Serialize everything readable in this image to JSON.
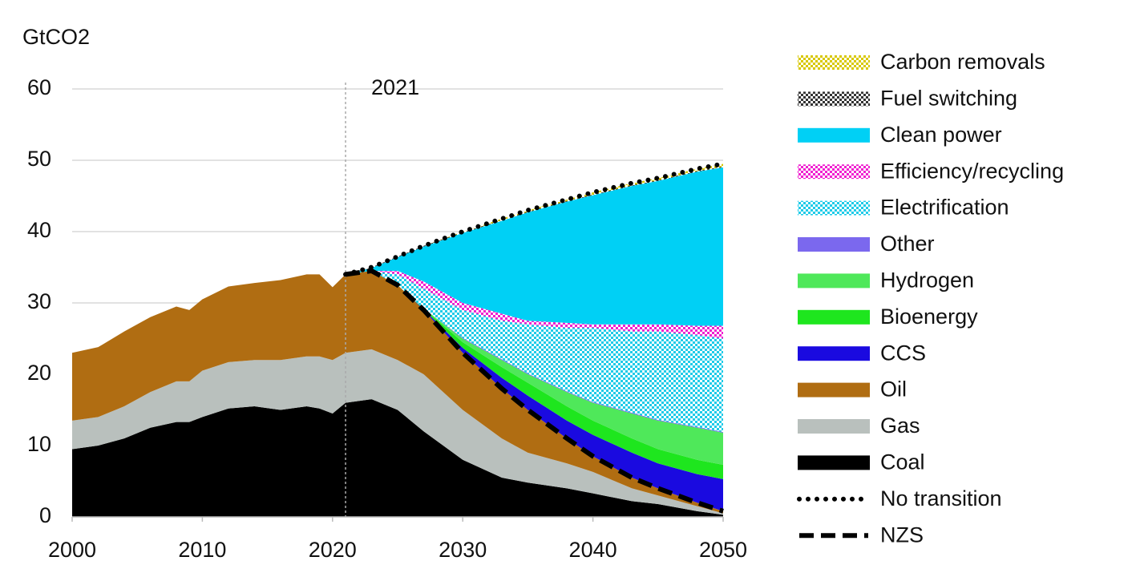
{
  "chart_data": {
    "type": "stacked_area",
    "y_label": "GtCO2",
    "annotations": [
      {
        "text": "2021",
        "x": 2021
      }
    ],
    "x": [
      2000,
      2002,
      2004,
      2006,
      2008,
      2009,
      2010,
      2012,
      2014,
      2016,
      2018,
      2019,
      2020,
      2021,
      2023,
      2025,
      2027,
      2030,
      2033,
      2035,
      2038,
      2040,
      2043,
      2045,
      2048,
      2050
    ],
    "xlim": [
      2000,
      2050
    ],
    "xticks": [
      2000,
      2010,
      2020,
      2030,
      2040,
      2050
    ],
    "ylim": [
      0,
      60
    ],
    "yticks": [
      0,
      10,
      20,
      30,
      40,
      50,
      60
    ],
    "grid": true,
    "legend": "right",
    "series": [
      {
        "name": "Coal",
        "color": "#000000",
        "values": [
          9.5,
          10,
          11,
          12.5,
          13.3,
          13.3,
          14,
          15.2,
          15.5,
          15,
          15.5,
          15.2,
          14.5,
          16,
          16.5,
          15,
          12,
          8,
          5.5,
          4.8,
          4,
          3.3,
          2.2,
          1.8,
          0.8,
          0.3
        ]
      },
      {
        "name": "Gas",
        "color": "#b9c0bd",
        "values": [
          4,
          4,
          4.5,
          5,
          5.7,
          5.7,
          6.5,
          6.5,
          6.5,
          7,
          7,
          7.3,
          7.5,
          7,
          7,
          7,
          8,
          7,
          5.5,
          4.2,
          3.5,
          3,
          1.8,
          1.2,
          0.7,
          0.2
        ]
      },
      {
        "name": "Oil",
        "color": "#b06d12",
        "values": [
          9.5,
          9.8,
          10.5,
          10.5,
          10.5,
          10,
          10,
          10.6,
          10.8,
          11.2,
          11.5,
          11.5,
          10.2,
          11,
          11,
          10.5,
          9,
          8,
          7,
          6,
          3.5,
          2.2,
          1.5,
          1,
          0.5,
          0.3
        ]
      },
      {
        "name": "CCS",
        "color": "#1a0ae0",
        "values": [
          0,
          0,
          0,
          0,
          0,
          0,
          0,
          0,
          0,
          0,
          0,
          0,
          0,
          0,
          0,
          0,
          0.1,
          0.7,
          1.5,
          2,
          2.5,
          3,
          3.5,
          3.5,
          4,
          4.5
        ]
      },
      {
        "name": "Bioenergy",
        "color": "#1ee61e",
        "values": [
          0,
          0,
          0,
          0,
          0,
          0,
          0,
          0,
          0,
          0,
          0,
          0,
          0,
          0,
          0,
          0,
          0.1,
          0.8,
          1.5,
          1.8,
          2,
          2,
          2,
          2,
          2,
          2
        ]
      },
      {
        "name": "Hydrogen",
        "color": "#4fe85a",
        "values": [
          0,
          0,
          0,
          0,
          0,
          0,
          0,
          0,
          0,
          0,
          0,
          0,
          0,
          0,
          0,
          0,
          0,
          0.5,
          1,
          1.2,
          2,
          2.5,
          3.5,
          4,
          4.5,
          4.5
        ]
      },
      {
        "name": "Other",
        "color": "#7b68ee",
        "values": [
          0,
          0,
          0,
          0,
          0,
          0,
          0,
          0,
          0,
          0,
          0,
          0,
          0,
          0,
          0,
          0,
          0,
          0.1,
          0.1,
          0.1,
          0.1,
          0.1,
          0.1,
          0.1,
          0.1,
          0.1
        ]
      },
      {
        "name": "Electrification",
        "color": "#1fcbe8",
        "hatch": true,
        "values": [
          0,
          0,
          0,
          0,
          0,
          0,
          0,
          0,
          0,
          0,
          0,
          0,
          0,
          0,
          0,
          1.5,
          2.8,
          3.9,
          5.4,
          6.9,
          8.9,
          10.4,
          11.4,
          12.4,
          12.9,
          13.1
        ]
      },
      {
        "name": "Efficiency/recycling",
        "color": "#f020d0",
        "hatch": true,
        "values": [
          0,
          0,
          0,
          0,
          0,
          0,
          0,
          0,
          0,
          0,
          0,
          0,
          0,
          0,
          0,
          0.5,
          1,
          1,
          1,
          0.5,
          0.7,
          0.5,
          1,
          1,
          1.3,
          1.8
        ]
      },
      {
        "name": "Clean power",
        "color": "#00d0f5",
        "values": [
          0,
          0,
          0,
          0,
          0,
          0,
          0,
          0,
          0,
          0,
          0,
          0,
          0,
          0,
          0.4,
          1.9,
          4.9,
          9.8,
          13,
          15.2,
          17,
          18.1,
          19.4,
          20.1,
          21.6,
          22.2
        ]
      },
      {
        "name": "Fuel switching",
        "color": "#333333",
        "hatch": true,
        "values": [
          0,
          0,
          0,
          0,
          0,
          0,
          0,
          0,
          0,
          0,
          0,
          0,
          0,
          0,
          0.1,
          0.1,
          0.1,
          0.1,
          0.1,
          0.1,
          0.1,
          0.1,
          0.1,
          0.1,
          0.1,
          0.1
        ]
      },
      {
        "name": "Carbon removals",
        "color": "#d8c800",
        "hatch": true,
        "values": [
          0,
          0,
          0,
          0,
          0,
          0,
          0,
          0,
          0,
          0,
          0,
          0,
          0,
          0,
          0,
          0,
          0,
          0.1,
          0.2,
          0.2,
          0.2,
          0.3,
          0.3,
          0.3,
          0.3,
          0.4
        ]
      }
    ],
    "lines": [
      {
        "name": "No transition",
        "color": "#000000",
        "style": "dotted",
        "values": [
          null,
          null,
          null,
          null,
          null,
          null,
          null,
          null,
          null,
          null,
          null,
          null,
          null,
          34,
          35,
          36.5,
          38,
          40,
          41.8,
          43,
          44.5,
          45.5,
          46.8,
          47.5,
          48.8,
          49.5
        ]
      },
      {
        "name": "NZS",
        "color": "#000000",
        "style": "dashed",
        "values": [
          null,
          null,
          null,
          null,
          null,
          null,
          null,
          null,
          null,
          null,
          null,
          null,
          null,
          34,
          34.5,
          32.5,
          29,
          23,
          18,
          15,
          11,
          8.5,
          5.5,
          4,
          2,
          0.8
        ]
      }
    ]
  }
}
